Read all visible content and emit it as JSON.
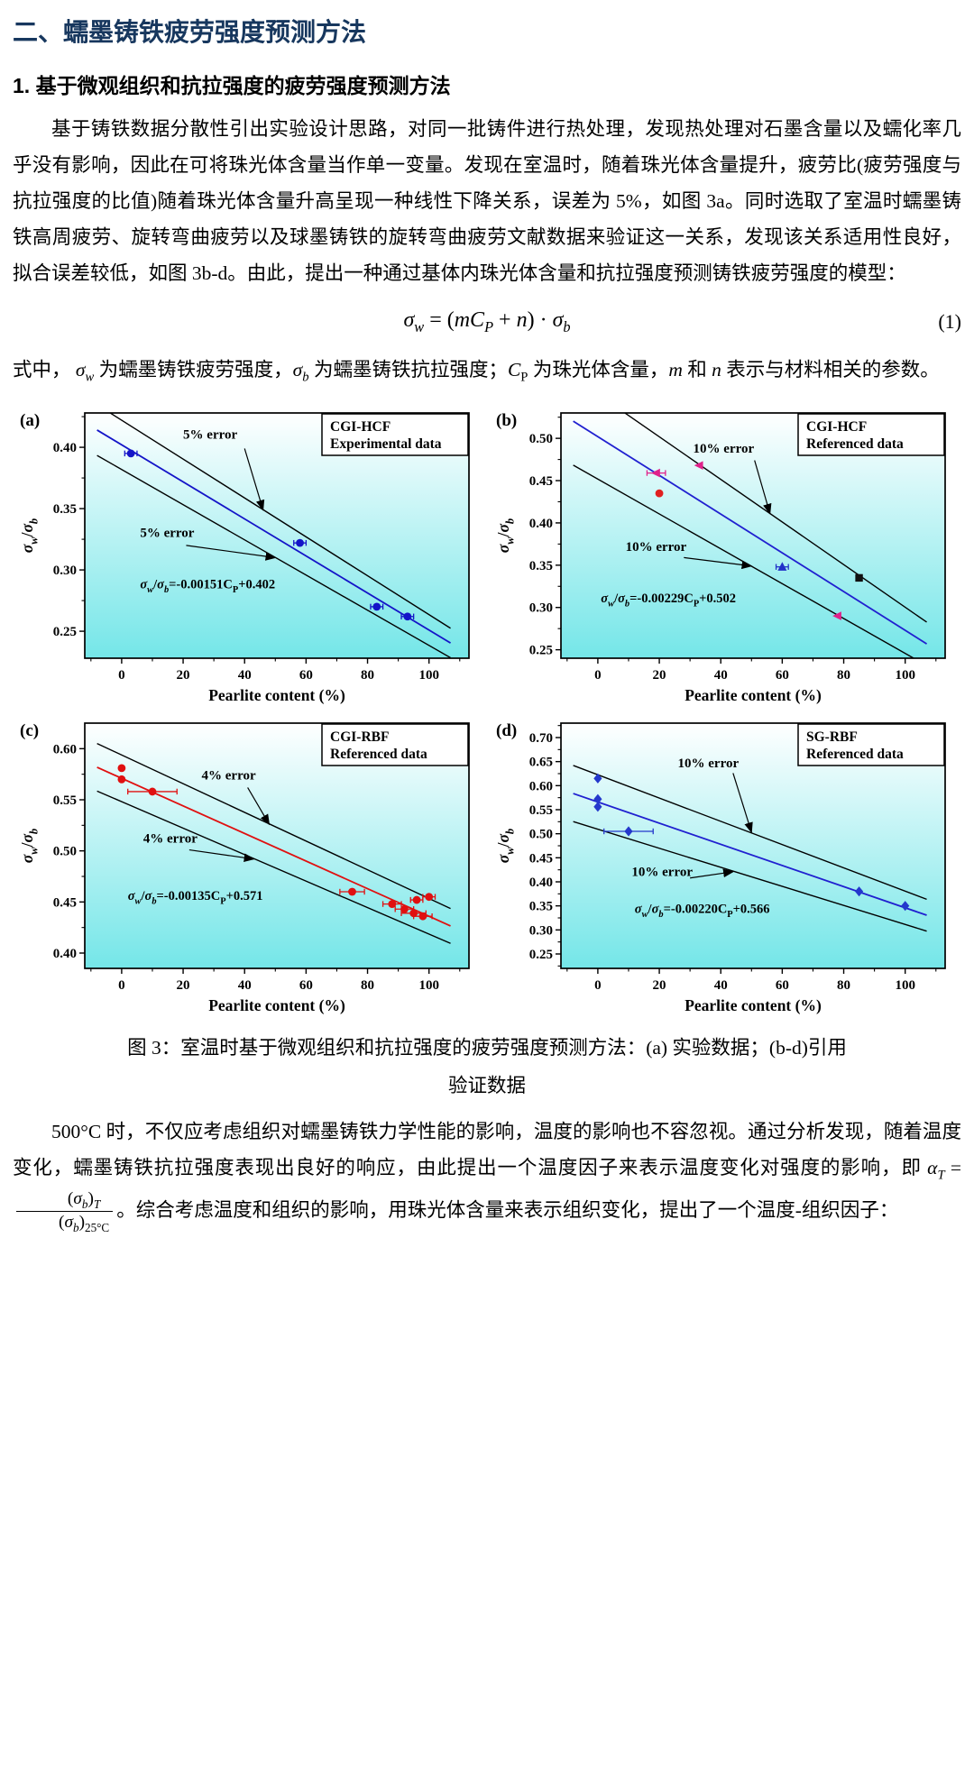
{
  "style": {
    "heading_color": "#17375e",
    "plot_bg_top": "#ffffff",
    "plot_bg_bottom": "#74e6e8"
  },
  "doc": {
    "heading1": "二、蠕墨铸铁疲劳强度预测方法",
    "heading2": "1. 基于微观组织和抗拉强度的疲劳强度预测方法",
    "para1": "基于铸铁数据分散性引出实验设计思路，对同一批铸件进行热处理，发现热处理对石墨含量以及蠕化率几乎没有影响，因此在可将珠光体含量当作单一变量。发现在室温时，随着珠光体含量提升，疲劳比(疲劳强度与抗拉强度的比值)随着珠光体含量升高呈现一种线性下降关系，误差为 5%，如图 3a。同时选取了室温时蠕墨铸铁高周疲劳、旋转弯曲疲劳以及球墨铸铁的旋转弯曲疲劳文献数据来验证这一关系，发现该关系适用性良好，拟合误差较低，如图 3b-d。由此，提出一种通过基体内珠光体含量和抗拉强度预测铸铁疲劳强度的模型：",
    "equation1": {
      "number": "(1)",
      "segs": [
        {
          "t": "σ",
          "i": true
        },
        {
          "t": "w",
          "sub": true,
          "i": true
        },
        {
          "t": " = ("
        },
        {
          "t": "mC",
          "i": true
        },
        {
          "t": "P",
          "sub": true,
          "i": true
        },
        {
          "t": " + "
        },
        {
          "t": "n",
          "i": true
        },
        {
          "t": ") · "
        },
        {
          "t": "σ",
          "i": true
        },
        {
          "t": "b",
          "sub": true,
          "i": true
        }
      ]
    },
    "para2_segs": [
      {
        "t": "式中， "
      },
      {
        "t": "σ",
        "i": true
      },
      {
        "t": "w",
        "sub": true,
        "i": true
      },
      {
        "t": " 为蠕墨铸铁疲劳强度，"
      },
      {
        "t": "σ",
        "i": true
      },
      {
        "t": "b",
        "sub": true,
        "i": true
      },
      {
        "t": " 为蠕墨铸铁抗拉强度；"
      },
      {
        "t": "C",
        "i": true
      },
      {
        "t": "P",
        "sub": true
      },
      {
        "t": " 为珠光体含量，"
      },
      {
        "t": "m",
        "i": true
      },
      {
        "t": " 和 "
      },
      {
        "t": "n",
        "i": true
      },
      {
        "t": " 表示与材料相关的参数。"
      }
    ],
    "caption_line1": "图 3：室温时基于微观组织和抗拉强度的疲劳强度预测方法：(a) 实验数据；(b-d)引用",
    "caption_line2": "验证数据",
    "para3_segs": [
      {
        "t": "500°C 时，不仅应考虑组织对蠕墨铸铁力学性能的影响，温度的影响也不容忽视。通过分析发现，随着温度变化，蠕墨铸铁抗拉强度表现出良好的响应，由此提出一个温度因子来表示温度变化对强度的影响，即 "
      },
      {
        "t": "α",
        "i": true
      },
      {
        "t": "T",
        "sub": true,
        "i": true
      },
      {
        "t": " = "
      },
      {
        "frac": {
          "num": [
            {
              "t": "("
            },
            {
              "t": "σ",
              "i": true
            },
            {
              "t": "b",
              "sub": true,
              "i": true
            },
            {
              "t": ")"
            },
            {
              "t": "T",
              "sub": true,
              "i": true
            }
          ],
          "den": [
            {
              "t": "("
            },
            {
              "t": "σ",
              "i": true
            },
            {
              "t": "b",
              "sub": true,
              "i": true
            },
            {
              "t": ")"
            },
            {
              "t": "25°C",
              "sub": true
            }
          ]
        }
      },
      {
        "t": "。综合考虑温度和组织的影响，用珠光体含量来表示组织变化，提出了一个温度-组织因子："
      }
    ]
  },
  "chart_data": [
    {
      "type": "scatter",
      "panel": "(a)",
      "legend_lines": [
        "CGI-HCF",
        "Experimental data"
      ],
      "xlabel": "Pearlite content (%)",
      "ylabel_text": "σw/σb",
      "ylabel_segs": [
        {
          "t": "σ",
          "i": true
        },
        {
          "t": "w",
          "sub": true,
          "i": true
        },
        {
          "t": "/"
        },
        {
          "t": "σ",
          "i": true
        },
        {
          "t": "b",
          "sub": true,
          "i": true
        }
      ],
      "xlim": [
        -12,
        113
      ],
      "ylim": [
        0.228,
        0.428
      ],
      "xticks": [
        0,
        20,
        40,
        60,
        80,
        100
      ],
      "yticks": [
        0.25,
        0.3,
        0.35,
        0.4
      ],
      "fit": {
        "slope": -0.00151,
        "intercept": 0.402,
        "color": "#1414c8",
        "x_span": [
          -8,
          107
        ]
      },
      "error_frac": 0.05,
      "series": [
        {
          "marker": "circle",
          "color": "#1414c8",
          "points": [
            [
              3,
              0.395,
              2
            ],
            [
              58,
              0.322,
              2
            ],
            [
              83,
              0.27,
              2
            ],
            [
              93,
              0.262,
              2
            ]
          ]
        }
      ],
      "annotations": [
        {
          "text": "5% error",
          "tx": 20,
          "ty": 0.407,
          "sx": 40,
          "sy": 0.399,
          "ax": 46,
          "ay": 0.349
        },
        {
          "text": "5% error",
          "tx": 6,
          "ty": 0.327,
          "sx": 21,
          "sy": 0.32,
          "ax": 50,
          "ay": 0.31
        }
      ],
      "fit_label": {
        "x": 6,
        "y": 0.285,
        "segs": [
          {
            "t": "σ",
            "i": true
          },
          {
            "t": "w",
            "sub": true,
            "i": true
          },
          {
            "t": "/"
          },
          {
            "t": "σ",
            "i": true
          },
          {
            "t": "b",
            "sub": true,
            "i": true
          },
          {
            "t": "=-0.00151C"
          },
          {
            "t": "P",
            "sub": true
          },
          {
            "t": "+0.402"
          }
        ]
      }
    },
    {
      "type": "scatter",
      "panel": "(b)",
      "legend_lines": [
        "CGI-HCF",
        "Referenced data"
      ],
      "xlabel": "Pearlite content (%)",
      "ylabel_text": "σw/σb",
      "ylabel_segs": [
        {
          "t": "σ",
          "i": true
        },
        {
          "t": "w",
          "sub": true,
          "i": true
        },
        {
          "t": "/"
        },
        {
          "t": "σ",
          "i": true
        },
        {
          "t": "b",
          "sub": true,
          "i": true
        }
      ],
      "xlim": [
        -12,
        113
      ],
      "ylim": [
        0.24,
        0.53
      ],
      "xticks": [
        0,
        20,
        40,
        60,
        80,
        100
      ],
      "yticks": [
        0.25,
        0.3,
        0.35,
        0.4,
        0.45,
        0.5
      ],
      "fit": {
        "slope": -0.00229,
        "intercept": 0.502,
        "color": "#2020d0",
        "x_span": [
          -8,
          107
        ]
      },
      "error_frac": 0.1,
      "series": [
        {
          "marker": "tri-left",
          "color": "#e0218a",
          "points": [
            [
              19,
              0.459,
              3
            ],
            [
              33,
              0.468,
              0
            ],
            [
              78,
              0.29,
              0
            ]
          ]
        },
        {
          "marker": "circle",
          "color": "#e02020",
          "points": [
            [
              20,
              0.435,
              0
            ]
          ]
        },
        {
          "marker": "tri-up",
          "color": "#2030c8",
          "points": [
            [
              60,
              0.348,
              2
            ]
          ]
        },
        {
          "marker": "square",
          "color": "#101010",
          "points": [
            [
              85,
              0.335,
              0
            ]
          ]
        }
      ],
      "annotations": [
        {
          "text": "10% error",
          "tx": 31,
          "ty": 0.483,
          "sx": 51,
          "sy": 0.474,
          "ax": 56,
          "ay": 0.411
        },
        {
          "text": "10% error",
          "tx": 9,
          "ty": 0.367,
          "sx": 28,
          "sy": 0.359,
          "ax": 50,
          "ay": 0.349
        }
      ],
      "fit_label": {
        "x": 1,
        "y": 0.306,
        "segs": [
          {
            "t": "σ",
            "i": true
          },
          {
            "t": "w",
            "sub": true,
            "i": true
          },
          {
            "t": "/"
          },
          {
            "t": "σ",
            "i": true
          },
          {
            "t": "b",
            "sub": true,
            "i": true
          },
          {
            "t": "=-0.00229C"
          },
          {
            "t": "P",
            "sub": true
          },
          {
            "t": "+0.502"
          }
        ]
      }
    },
    {
      "type": "scatter",
      "panel": "(c)",
      "legend_lines": [
        "CGI-RBF",
        "Referenced data"
      ],
      "xlabel": "Pearlite content (%)",
      "ylabel_text": "σw/σb",
      "ylabel_segs": [
        {
          "t": "σ",
          "i": true
        },
        {
          "t": "w",
          "sub": true,
          "i": true
        },
        {
          "t": "/"
        },
        {
          "t": "σ",
          "i": true
        },
        {
          "t": "b",
          "sub": true,
          "i": true
        }
      ],
      "xlim": [
        -12,
        113
      ],
      "ylim": [
        0.385,
        0.625
      ],
      "xticks": [
        0,
        20,
        40,
        60,
        80,
        100
      ],
      "yticks": [
        0.4,
        0.45,
        0.5,
        0.55,
        0.6
      ],
      "fit": {
        "slope": -0.00135,
        "intercept": 0.571,
        "color": "#e01010",
        "x_span": [
          -8,
          107
        ]
      },
      "error_frac": 0.04,
      "series": [
        {
          "marker": "circle",
          "color": "#e01010",
          "points": [
            [
              0,
              0.581,
              0
            ],
            [
              0,
              0.57,
              0
            ],
            [
              10,
              0.558,
              8
            ],
            [
              75,
              0.46,
              4
            ],
            [
              88,
              0.448,
              3
            ],
            [
              92,
              0.443,
              3
            ],
            [
              95,
              0.439,
              4
            ],
            [
              98,
              0.436,
              3
            ],
            [
              96,
              0.452,
              2
            ],
            [
              100,
              0.455,
              2
            ]
          ]
        }
      ],
      "annotations": [
        {
          "text": "4% error",
          "tx": 26,
          "ty": 0.57,
          "sx": 41,
          "sy": 0.562,
          "ax": 48,
          "ay": 0.526
        },
        {
          "text": "4% error",
          "tx": 7,
          "ty": 0.508,
          "sx": 22,
          "sy": 0.501,
          "ax": 43,
          "ay": 0.492
        }
      ],
      "fit_label": {
        "x": 2,
        "y": 0.452,
        "segs": [
          {
            "t": "σ",
            "i": true
          },
          {
            "t": "w",
            "sub": true,
            "i": true
          },
          {
            "t": "/"
          },
          {
            "t": "σ",
            "i": true
          },
          {
            "t": "b",
            "sub": true,
            "i": true
          },
          {
            "t": "=-0.00135C"
          },
          {
            "t": "P",
            "sub": true
          },
          {
            "t": "+0.571"
          }
        ]
      }
    },
    {
      "type": "scatter",
      "panel": "(d)",
      "legend_lines": [
        "SG-RBF",
        "Referenced data"
      ],
      "xlabel": "Pearlite content (%)",
      "ylabel_text": "σw/σb",
      "ylabel_segs": [
        {
          "t": "σ",
          "i": true
        },
        {
          "t": "w",
          "sub": true,
          "i": true
        },
        {
          "t": "/"
        },
        {
          "t": "σ",
          "i": true
        },
        {
          "t": "b",
          "sub": true,
          "i": true
        }
      ],
      "xlim": [
        -12,
        113
      ],
      "ylim": [
        0.22,
        0.73
      ],
      "xticks": [
        0,
        20,
        40,
        60,
        80,
        100
      ],
      "yticks": [
        0.25,
        0.3,
        0.35,
        0.4,
        0.45,
        0.5,
        0.55,
        0.6,
        0.65,
        0.7
      ],
      "fit": {
        "slope": -0.0022,
        "intercept": 0.566,
        "color": "#2020d0",
        "x_span": [
          -8,
          107
        ]
      },
      "error_frac": 0.1,
      "series": [
        {
          "marker": "diamond",
          "color": "#2438cc",
          "points": [
            [
              0,
              0.615,
              0
            ],
            [
              0,
              0.572,
              0
            ],
            [
              0,
              0.556,
              0
            ],
            [
              10,
              0.505,
              8
            ],
            [
              85,
              0.38,
              0
            ],
            [
              100,
              0.35,
              0
            ]
          ]
        }
      ],
      "annotations": [
        {
          "text": "10% error",
          "tx": 26,
          "ty": 0.638,
          "sx": 44,
          "sy": 0.626,
          "ax": 50,
          "ay": 0.503
        },
        {
          "text": "10% error",
          "tx": 11,
          "ty": 0.412,
          "sx": 30,
          "sy": 0.408,
          "ax": 44,
          "ay": 0.421
        }
      ],
      "fit_label": {
        "x": 12,
        "y": 0.335,
        "segs": [
          {
            "t": "σ",
            "i": true
          },
          {
            "t": "w",
            "sub": true,
            "i": true
          },
          {
            "t": "/"
          },
          {
            "t": "σ",
            "i": true
          },
          {
            "t": "b",
            "sub": true,
            "i": true
          },
          {
            "t": "=-0.00220C"
          },
          {
            "t": "P",
            "sub": true
          },
          {
            "t": "+0.566"
          }
        ]
      }
    }
  ]
}
